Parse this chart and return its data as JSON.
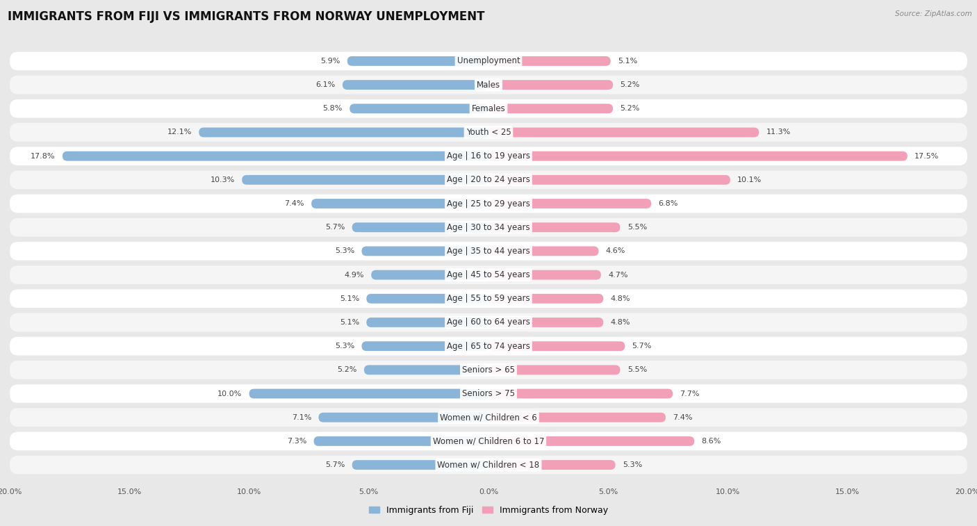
{
  "title": "IMMIGRANTS FROM FIJI VS IMMIGRANTS FROM NORWAY UNEMPLOYMENT",
  "source": "Source: ZipAtlas.com",
  "categories": [
    "Unemployment",
    "Males",
    "Females",
    "Youth < 25",
    "Age | 16 to 19 years",
    "Age | 20 to 24 years",
    "Age | 25 to 29 years",
    "Age | 30 to 34 years",
    "Age | 35 to 44 years",
    "Age | 45 to 54 years",
    "Age | 55 to 59 years",
    "Age | 60 to 64 years",
    "Age | 65 to 74 years",
    "Seniors > 65",
    "Seniors > 75",
    "Women w/ Children < 6",
    "Women w/ Children 6 to 17",
    "Women w/ Children < 18"
  ],
  "fiji_values": [
    5.9,
    6.1,
    5.8,
    12.1,
    17.8,
    10.3,
    7.4,
    5.7,
    5.3,
    4.9,
    5.1,
    5.1,
    5.3,
    5.2,
    10.0,
    7.1,
    7.3,
    5.7
  ],
  "norway_values": [
    5.1,
    5.2,
    5.2,
    11.3,
    17.5,
    10.1,
    6.8,
    5.5,
    4.6,
    4.7,
    4.8,
    4.8,
    5.7,
    5.5,
    7.7,
    7.4,
    8.6,
    5.3
  ],
  "fiji_color": "#8ab4d8",
  "norway_color": "#f2a0b8",
  "max_value": 20.0,
  "background_color": "#e8e8e8",
  "row_color_odd": "#f5f5f5",
  "row_color_even": "#ffffff",
  "title_fontsize": 12,
  "label_fontsize": 8.5,
  "value_fontsize": 8,
  "legend_label_fiji": "Immigrants from Fiji",
  "legend_label_norway": "Immigrants from Norway"
}
